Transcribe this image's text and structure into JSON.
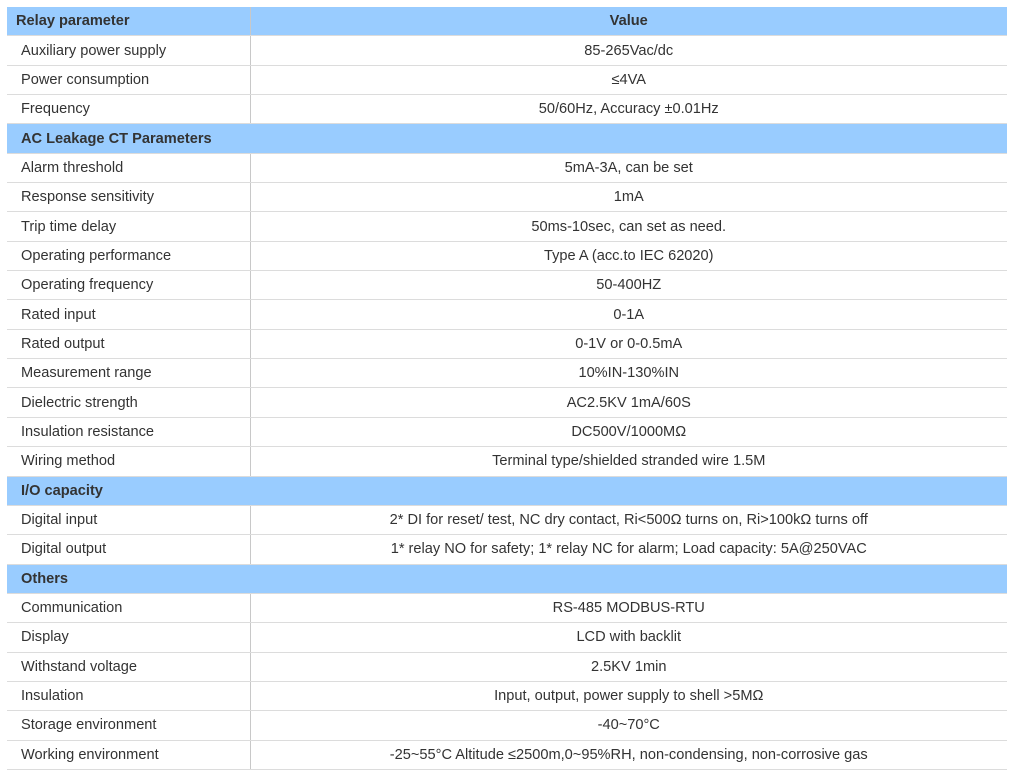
{
  "header": {
    "param": "Relay parameter",
    "value": "Value"
  },
  "colors": {
    "header_bg": "#99ccff",
    "text": "#333333",
    "border": "#dcdcdc"
  },
  "sections": [
    {
      "title": "",
      "rows": [
        {
          "param": "Auxiliary power supply",
          "value": "85-265Vac/dc"
        },
        {
          "param": "Power consumption",
          "value": "≤4VA"
        },
        {
          "param": "Frequency",
          "value": "50/60Hz, Accuracy ±0.01Hz"
        }
      ]
    },
    {
      "title": "AC Leakage CT Parameters",
      "rows": [
        {
          "param": "Alarm threshold",
          "value": "5mA-3A, can be set"
        },
        {
          "param": "Response sensitivity",
          "value": "1mA"
        },
        {
          "param": "Trip time delay",
          "value": "50ms-10sec, can set as need."
        },
        {
          "param": "Operating performance",
          "value": "Type A (acc.to IEC 62020)"
        },
        {
          "param": "Operating frequency",
          "value": "50-400HZ"
        },
        {
          "param": "Rated input",
          "value": "0-1A"
        },
        {
          "param": "Rated output",
          "value": "0-1V or 0-0.5mA"
        },
        {
          "param": "Measurement range",
          "value": "10%IN-130%IN"
        },
        {
          "param": "Dielectric strength",
          "value": "AC2.5KV 1mA/60S"
        },
        {
          "param": "Insulation resistance",
          "value": "DC500V/1000MΩ"
        },
        {
          "param": "Wiring method",
          "value": "Terminal type/shielded stranded wire 1.5M"
        }
      ]
    },
    {
      "title": "I/O capacity",
      "rows": [
        {
          "param": "Digital input",
          "value": "2* DI for reset/ test, NC dry contact, Ri<500Ω turns on, Ri>100kΩ turns off"
        },
        {
          "param": "Digital output",
          "value": "1* relay NO for safety; 1* relay NC for alarm; Load capacity: 5A@250VAC"
        }
      ]
    },
    {
      "title": "Others",
      "rows": [
        {
          "param": "Communication",
          "value": "RS-485 MODBUS-RTU"
        },
        {
          "param": "Display",
          "value": "LCD with backlit"
        },
        {
          "param": "Withstand voltage",
          "value": "2.5KV 1min"
        },
        {
          "param": "Insulation",
          "value": "Input, output, power supply to shell >5MΩ"
        },
        {
          "param": "Storage environment",
          "value": "-40~70°C"
        },
        {
          "param": "Working environment",
          "value": "-25~55°C Altitude ≤2500m,0~95%RH, non-condensing, non-corrosive gas"
        }
      ]
    }
  ]
}
